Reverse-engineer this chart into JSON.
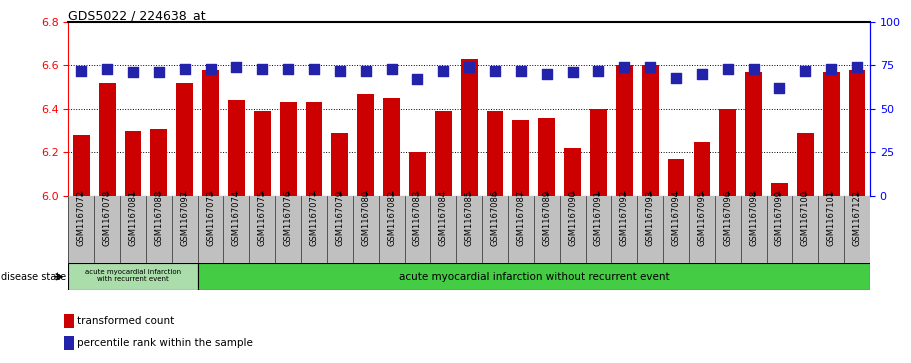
{
  "title": "GDS5022 / 224638_at",
  "samples": [
    "GSM1167072",
    "GSM1167078",
    "GSM1167081",
    "GSM1167088",
    "GSM1167097",
    "GSM1167073",
    "GSM1167074",
    "GSM1167075",
    "GSM1167076",
    "GSM1167077",
    "GSM1167079",
    "GSM1167080",
    "GSM1167082",
    "GSM1167083",
    "GSM1167084",
    "GSM1167085",
    "GSM1167086",
    "GSM1167087",
    "GSM1167089",
    "GSM1167090",
    "GSM1167091",
    "GSM1167092",
    "GSM1167093",
    "GSM1167094",
    "GSM1167095",
    "GSM1167096",
    "GSM1167098",
    "GSM1167099",
    "GSM1167100",
    "GSM1167101",
    "GSM1167122"
  ],
  "bar_values": [
    6.28,
    6.52,
    6.3,
    6.31,
    6.52,
    6.58,
    6.44,
    6.39,
    6.43,
    6.43,
    6.29,
    6.47,
    6.45,
    6.2,
    6.39,
    6.63,
    6.39,
    6.35,
    6.36,
    6.22,
    6.4,
    6.6,
    6.6,
    6.17,
    6.25,
    6.4,
    6.57,
    6.06,
    6.29,
    6.57,
    6.58
  ],
  "percentile_values": [
    72,
    73,
    71,
    71,
    73,
    73,
    74,
    73,
    73,
    73,
    72,
    72,
    73,
    67,
    72,
    74,
    72,
    72,
    70,
    71,
    72,
    74,
    74,
    68,
    70,
    73,
    73,
    62,
    72,
    73,
    74
  ],
  "ylim_left": [
    6.0,
    6.8
  ],
  "ylim_right": [
    0,
    100
  ],
  "yticks_left": [
    6.0,
    6.2,
    6.4,
    6.6,
    6.8
  ],
  "yticks_right": [
    0,
    25,
    50,
    75,
    100
  ],
  "bar_color": "#cc0000",
  "dot_color": "#2222aa",
  "group1_count": 5,
  "group1_label": "acute myocardial infarction\nwith recurrent event",
  "group2_label": "acute myocardial infarction without recurrent event",
  "group1_color": "#aaddaa",
  "group2_color": "#44cc44",
  "legend_bar_label": "transformed count",
  "legend_dot_label": "percentile rank within the sample",
  "disease_state_label": "disease state",
  "xtick_bg_color": "#c0c0c0",
  "plot_bg_color": "#ffffff"
}
